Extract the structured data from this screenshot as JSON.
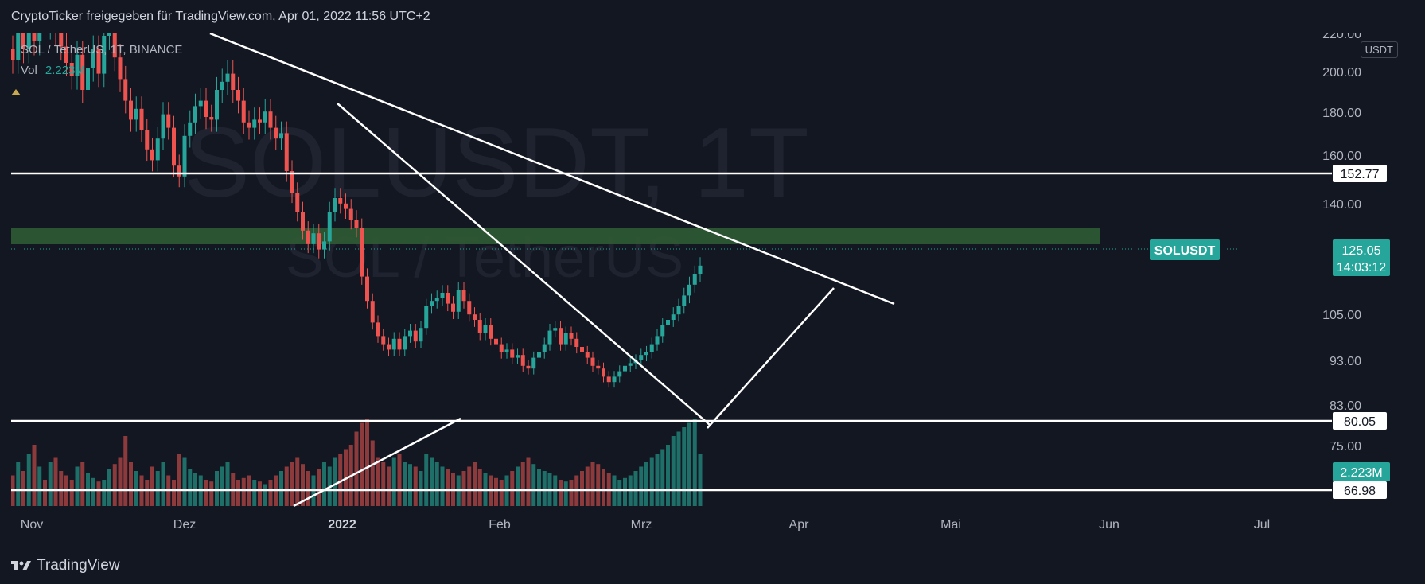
{
  "header": {
    "title": "CryptoTicker freigegeben für TradingView.com, Apr 01, 2022 11:56 UTC+2"
  },
  "legend": {
    "symbol_line": "SOL / TetherUS, 1T, BINANCE",
    "vol_label": "Vol",
    "vol_value": "2.223M"
  },
  "watermark": {
    "line1": "SOLUSDT, 1T",
    "line2": "SOL / TetherUS"
  },
  "price_axis": {
    "unit": "USDT",
    "ticks": [
      "220.00",
      "200.00",
      "180.00",
      "160.00",
      "140.00",
      "105.00",
      "93.00",
      "83.00",
      "75.00"
    ]
  },
  "time_axis": {
    "labels": [
      "Nov",
      "Dez",
      "2022",
      "Feb",
      "Mrz",
      "Apr",
      "Mai",
      "Jun",
      "Jul"
    ]
  },
  "price_tags": {
    "resistance": "152.77",
    "support": "80.05",
    "low": "66.98",
    "symbol": "SOLUSDT",
    "last_price": "125.05",
    "countdown": "14:03:12",
    "volume": "2.223M"
  },
  "colors": {
    "up": "#26a69a",
    "down": "#ef5350",
    "zone": "#2f5b34",
    "background": "#131722"
  },
  "footer": {
    "brand": "TradingView"
  },
  "chart_data": {
    "type": "candlestick",
    "symbol": "SOLUSDT",
    "ylim": [
      66,
      222
    ],
    "horizontal_levels": [
      152.77,
      80.05,
      66.98
    ],
    "supply_zone": [
      126,
      132
    ],
    "last_close": 125.05,
    "closes": [
      201,
      212,
      205,
      216,
      208,
      219,
      214,
      220,
      212,
      206,
      200,
      195,
      203,
      190,
      198,
      205,
      196,
      210,
      215,
      202,
      194,
      186,
      179,
      183,
      175,
      168,
      164,
      172,
      181,
      176,
      162,
      158,
      173,
      178,
      184,
      186,
      180,
      179,
      190,
      193,
      196,
      190,
      186,
      178,
      176,
      179,
      178,
      182,
      176,
      172,
      174,
      160,
      152,
      145,
      138,
      133,
      137,
      131,
      134,
      145,
      150,
      148,
      146,
      142,
      139,
      121,
      112,
      104,
      99,
      96,
      94,
      98,
      94,
      99,
      101,
      97,
      102,
      110,
      112,
      113,
      115,
      111,
      108,
      116,
      112,
      107,
      105,
      100,
      103,
      98,
      96,
      93,
      94,
      91,
      92,
      88,
      87,
      91,
      93,
      96,
      101,
      102,
      96,
      100,
      98,
      95,
      93,
      91,
      88,
      87,
      84,
      82,
      84,
      86,
      88,
      89,
      90,
      92,
      93,
      96,
      99,
      103,
      105,
      107,
      110,
      114,
      118,
      122,
      125.05
    ],
    "volume_scale": [
      0.35,
      0.5,
      0.4,
      0.6,
      0.7,
      0.45,
      0.3,
      0.5,
      0.55,
      0.4,
      0.35,
      0.3,
      0.45,
      0.5,
      0.38,
      0.32,
      0.28,
      0.3,
      0.42,
      0.48,
      0.55,
      0.8,
      0.5,
      0.4,
      0.35,
      0.3,
      0.45,
      0.4,
      0.5,
      0.35,
      0.3,
      0.6,
      0.55,
      0.42,
      0.38,
      0.35,
      0.3,
      0.28,
      0.4,
      0.45,
      0.5,
      0.38,
      0.3,
      0.32,
      0.35,
      0.3,
      0.28,
      0.25,
      0.3,
      0.35,
      0.4,
      0.45,
      0.5,
      0.55,
      0.48,
      0.4,
      0.35,
      0.42,
      0.5,
      0.45,
      0.55,
      0.6,
      0.65,
      0.7,
      0.85,
      0.95,
      1.0,
      0.75,
      0.55,
      0.5,
      0.45,
      0.55,
      0.6,
      0.5,
      0.48,
      0.45,
      0.4,
      0.6,
      0.55,
      0.5,
      0.45,
      0.42,
      0.38,
      0.35,
      0.4,
      0.45,
      0.5,
      0.42,
      0.38,
      0.35,
      0.32,
      0.3,
      0.35,
      0.4,
      0.45,
      0.5,
      0.55,
      0.48,
      0.42,
      0.4,
      0.38,
      0.35,
      0.3,
      0.28,
      0.3,
      0.35,
      0.4,
      0.45,
      0.5,
      0.48,
      0.42,
      0.38,
      0.35,
      0.3,
      0.32,
      0.35,
      0.4,
      0.45,
      0.5,
      0.55,
      0.6,
      0.65,
      0.7,
      0.8,
      0.85,
      0.9,
      0.95,
      1.0,
      0.6
    ]
  }
}
